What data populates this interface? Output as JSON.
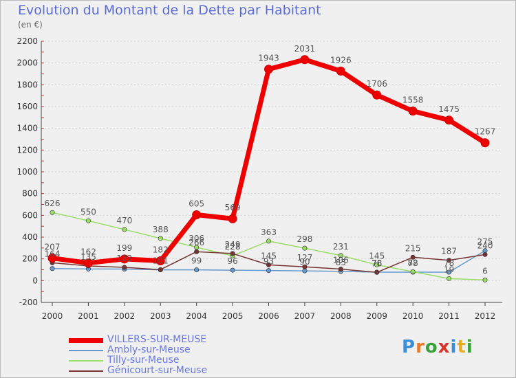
{
  "header": {
    "title": "Evolution du Montant de la Dette par Habitant",
    "subtitle": "(en €)"
  },
  "logo": {
    "text": "Proxiti",
    "letter_colors": [
      "#3a8fd8",
      "#e87a2a",
      "#3aa03a",
      "#d8342a",
      "#3a8fd8",
      "#e8b020",
      "#3aa03a"
    ]
  },
  "chart_data": {
    "type": "line",
    "title": "Evolution du Montant de la Dette par Habitant",
    "subtitle": "(en €)",
    "x": [
      "2000",
      "2001",
      "2002",
      "2003",
      "2004",
      "2005",
      "2006",
      "2007",
      "2008",
      "2009",
      "2010",
      "2011",
      "2012"
    ],
    "ylim": [
      -200,
      2200
    ],
    "yticks": [
      "-200",
      "0",
      "200",
      "400",
      "600",
      "800",
      "1000",
      "1200",
      "1400",
      "1600",
      "1800",
      "2000",
      "2200"
    ],
    "grid": "horizontal dotted",
    "legend_position": "bottom-left",
    "series": [
      {
        "name": "VILLERS-SUR-MEUSE",
        "color": "#ee0000",
        "values": [
          207,
          162,
          199,
          182,
          605,
          569,
          1943,
          2031,
          1926,
          1706,
          1558,
          1475,
          1267
        ],
        "labels": [
          "207",
          "162",
          "199",
          "182",
          "605",
          "569",
          "1943",
          "2031",
          "1926",
          "1706",
          "1558",
          "1475",
          "1267"
        ]
      },
      {
        "name": "Ambly-sur-Meuse",
        "color": "#6699cc",
        "values": [
          111,
          107,
          106,
          99,
          99,
          96,
          93,
          90,
          85,
          78,
          78,
          78,
          275
        ],
        "labels": [
          "",
          "",
          "",
          "",
          "99",
          "96",
          "93",
          "90",
          "85",
          "78",
          "78",
          "78",
          "275"
        ]
      },
      {
        "name": "Tilly-sur-Meuse",
        "color": "#99dd66",
        "values": [
          626,
          550,
          470,
          388,
          306,
          228,
          363,
          298,
          231,
          145,
          82,
          19,
          6
        ],
        "labels": [
          "626",
          "550",
          "470",
          "388",
          "306",
          "228",
          "363",
          "298",
          "231",
          "145",
          "82",
          "19",
          "6"
        ]
      },
      {
        "name": "Génicourt-sur-Meuse",
        "color": "#773333",
        "values": [
          164,
          135,
          122,
          101,
          266,
          249,
          145,
          127,
          106,
          76,
          215,
          187,
          240
        ],
        "labels": [
          "164",
          "135",
          "122",
          "101",
          "266",
          "249",
          "145",
          "127",
          "106",
          "76",
          "215",
          "187",
          "240"
        ]
      }
    ]
  }
}
